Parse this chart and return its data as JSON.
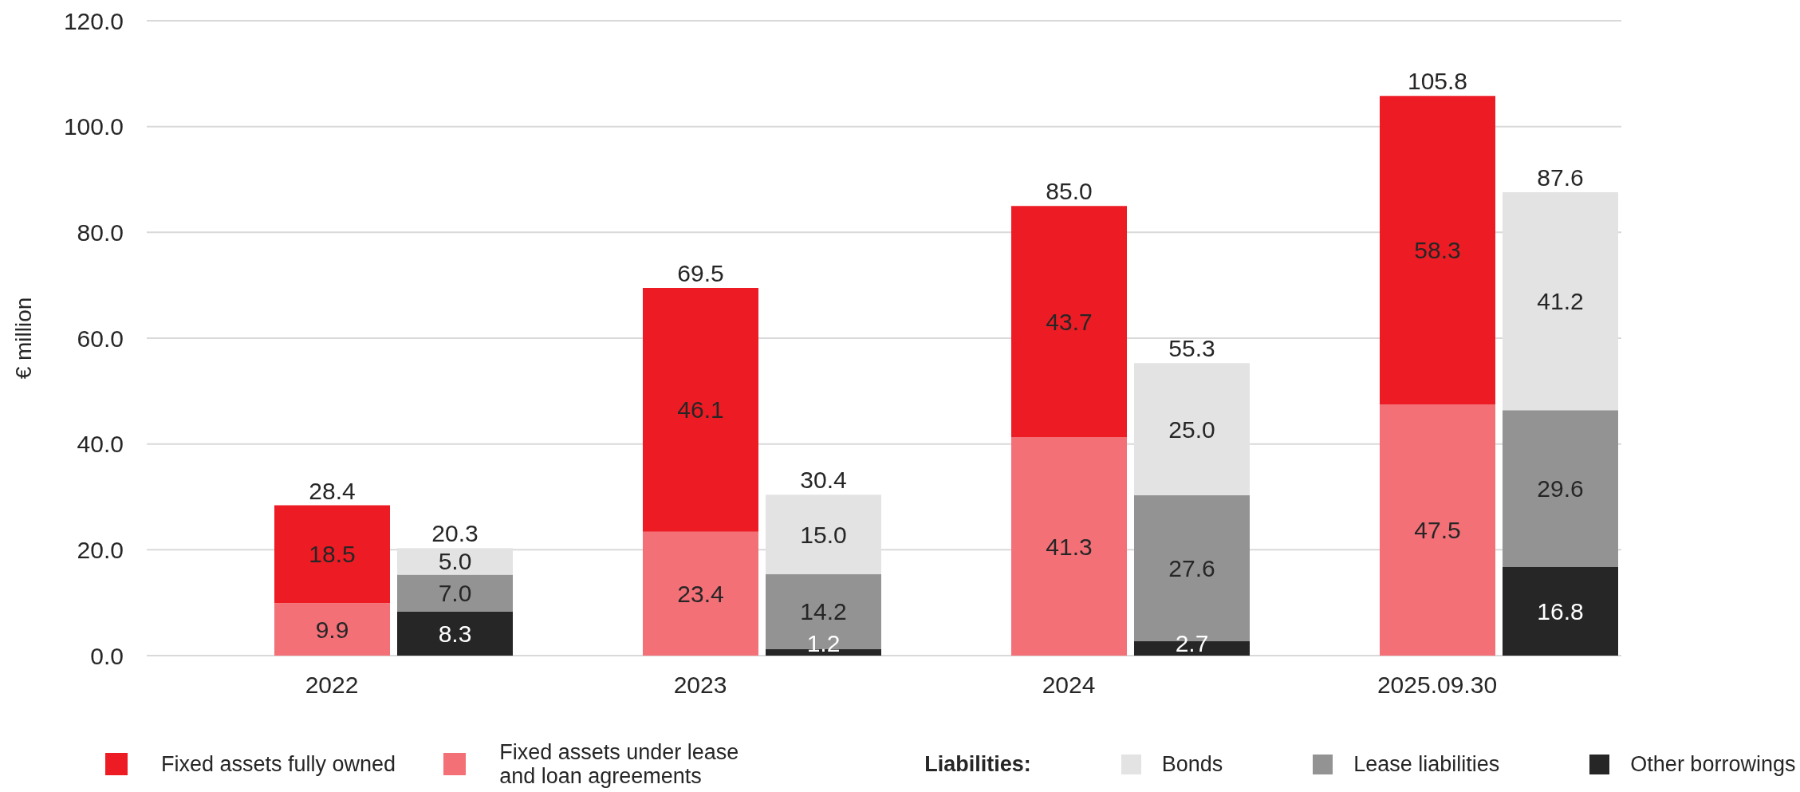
{
  "chart_data": {
    "type": "bar",
    "ylabel": "€ million",
    "categories": [
      "2022",
      null,
      null,
      "2023",
      null,
      null,
      "2024",
      null,
      null,
      "2025.09.30",
      null
    ],
    "series": [
      {
        "name": "Fixed assets under lease and loan agreements",
        "color": "#f37077",
        "values": [
          9.9,
          null,
          null,
          23.4,
          null,
          null,
          41.3,
          null,
          null,
          47.5,
          null
        ],
        "value_labels": [
          "9.9",
          null,
          null,
          "23.4",
          null,
          null,
          "41.3",
          null,
          null,
          "47.5",
          null
        ]
      },
      {
        "name": "Fixed assets fully owned",
        "color": "#ed1c24",
        "values": [
          18.5,
          null,
          null,
          46.1,
          null,
          null,
          43.7,
          null,
          null,
          58.3,
          null
        ],
        "value_labels": [
          "18.5",
          null,
          null,
          "46.1",
          null,
          null,
          "43.7",
          null,
          null,
          "58.3",
          null
        ]
      },
      {
        "name": "Other borrowings",
        "color": "#262626",
        "values": [
          null,
          8.3,
          null,
          null,
          1.2,
          null,
          null,
          2.7,
          null,
          null,
          16.8
        ],
        "value_labels": [
          null,
          "8.3",
          null,
          null,
          "1.2",
          null,
          null,
          "2.7",
          null,
          null,
          "16.8"
        ]
      },
      {
        "name": "Lease liabilities",
        "color": "#939393",
        "values": [
          null,
          7.0,
          null,
          null,
          14.2,
          null,
          null,
          27.6,
          null,
          null,
          29.6
        ],
        "value_labels": [
          null,
          "7.0",
          null,
          null,
          "14.2",
          null,
          null,
          "27.6",
          null,
          null,
          "29.6"
        ]
      },
      {
        "name": "Bonds",
        "color": "#e3e3e3",
        "values": [
          null,
          5.0,
          null,
          null,
          15.0,
          null,
          null,
          25.0,
          null,
          null,
          41.2
        ],
        "value_labels": [
          null,
          "5.0",
          null,
          null,
          "15.0",
          null,
          null,
          "25.0",
          null,
          null,
          "41.2"
        ]
      }
    ],
    "stacked": true,
    "totals": [
      "28.4",
      "20.3",
      null,
      "69.5",
      "30.4",
      null,
      "85.0",
      "55.3",
      null,
      "105.8",
      "87.6"
    ],
    "ylim": [
      0,
      120
    ],
    "yticks": [
      {
        "value": 0,
        "label": "0.0"
      },
      {
        "value": 20,
        "label": "20.0"
      },
      {
        "value": 40,
        "label": "40.0"
      },
      {
        "value": 60,
        "label": "60.0"
      },
      {
        "value": 80,
        "label": "80.0"
      },
      {
        "value": 100,
        "label": "100.0"
      },
      {
        "value": 120,
        "label": "120.0"
      }
    ],
    "grid": "y",
    "legend": "bottom",
    "legend_title": "Liabilities:"
  }
}
